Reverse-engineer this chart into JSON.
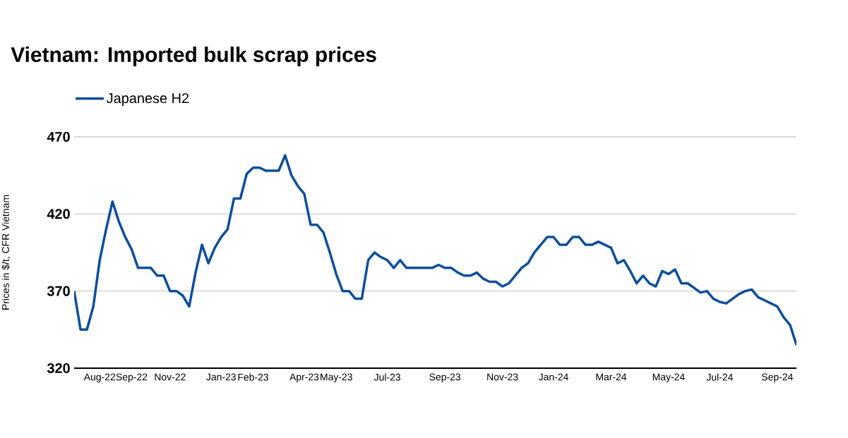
{
  "chart_data": {
    "type": "line",
    "title": "Vietnam: Imported bulk scrap prices",
    "ylabel": "Prices in $/t, CFR Vietnam",
    "categories": [
      null,
      null,
      null,
      null,
      "Aug-22",
      null,
      null,
      null,
      null,
      "Sep-22",
      null,
      null,
      null,
      null,
      null,
      "Nov-22",
      null,
      null,
      null,
      null,
      null,
      null,
      null,
      "Jan-23",
      null,
      null,
      null,
      null,
      "Feb-23",
      null,
      null,
      null,
      null,
      null,
      null,
      null,
      "Apr-23",
      null,
      null,
      null,
      null,
      "May-23",
      null,
      null,
      null,
      null,
      null,
      null,
      null,
      "Jul-23",
      null,
      null,
      null,
      null,
      null,
      null,
      null,
      null,
      "Sep-23",
      null,
      null,
      null,
      null,
      null,
      null,
      null,
      null,
      "Nov-23",
      null,
      null,
      null,
      null,
      null,
      null,
      null,
      "Jan-24",
      null,
      null,
      null,
      null,
      null,
      null,
      null,
      null,
      "Mar-24",
      null,
      null,
      null,
      null,
      null,
      null,
      null,
      null,
      "May-24",
      null,
      null,
      null,
      null,
      null,
      null,
      null,
      "Jul-24",
      null,
      null,
      null,
      null,
      null,
      null,
      null,
      null,
      "Sep-24",
      null,
      null,
      null
    ],
    "series": [
      {
        "name": "Japanese H2",
        "color": "#0b4f9e",
        "values": [
          370,
          345,
          345,
          360,
          390,
          410,
          428,
          415,
          405,
          397,
          385,
          385,
          385,
          380,
          380,
          370,
          370,
          367,
          360,
          382,
          400,
          388,
          398,
          405,
          410,
          430,
          430,
          446,
          450,
          450,
          448,
          448,
          448,
          458,
          445,
          438,
          433,
          413,
          413,
          408,
          395,
          381,
          370,
          370,
          365,
          365,
          390,
          395,
          392,
          390,
          385,
          390,
          385,
          385,
          385,
          385,
          385,
          387,
          385,
          385,
          382,
          380,
          380,
          382,
          378,
          376,
          376,
          373,
          375,
          380,
          385,
          388,
          395,
          400,
          405,
          405,
          400,
          400,
          405,
          405,
          400,
          400,
          402,
          400,
          398,
          388,
          390,
          383,
          375,
          380,
          375,
          373,
          383,
          381,
          384,
          375,
          375,
          372,
          369,
          370,
          365,
          363,
          362,
          365,
          368,
          370,
          371,
          366,
          364,
          362,
          360,
          353,
          348,
          335
        ]
      }
    ],
    "ylim": [
      320,
      470
    ],
    "yticks": [
      320,
      370,
      420,
      470
    ],
    "grid": "y",
    "legend": "top left",
    "marker": "none",
    "line_style": "solid"
  }
}
